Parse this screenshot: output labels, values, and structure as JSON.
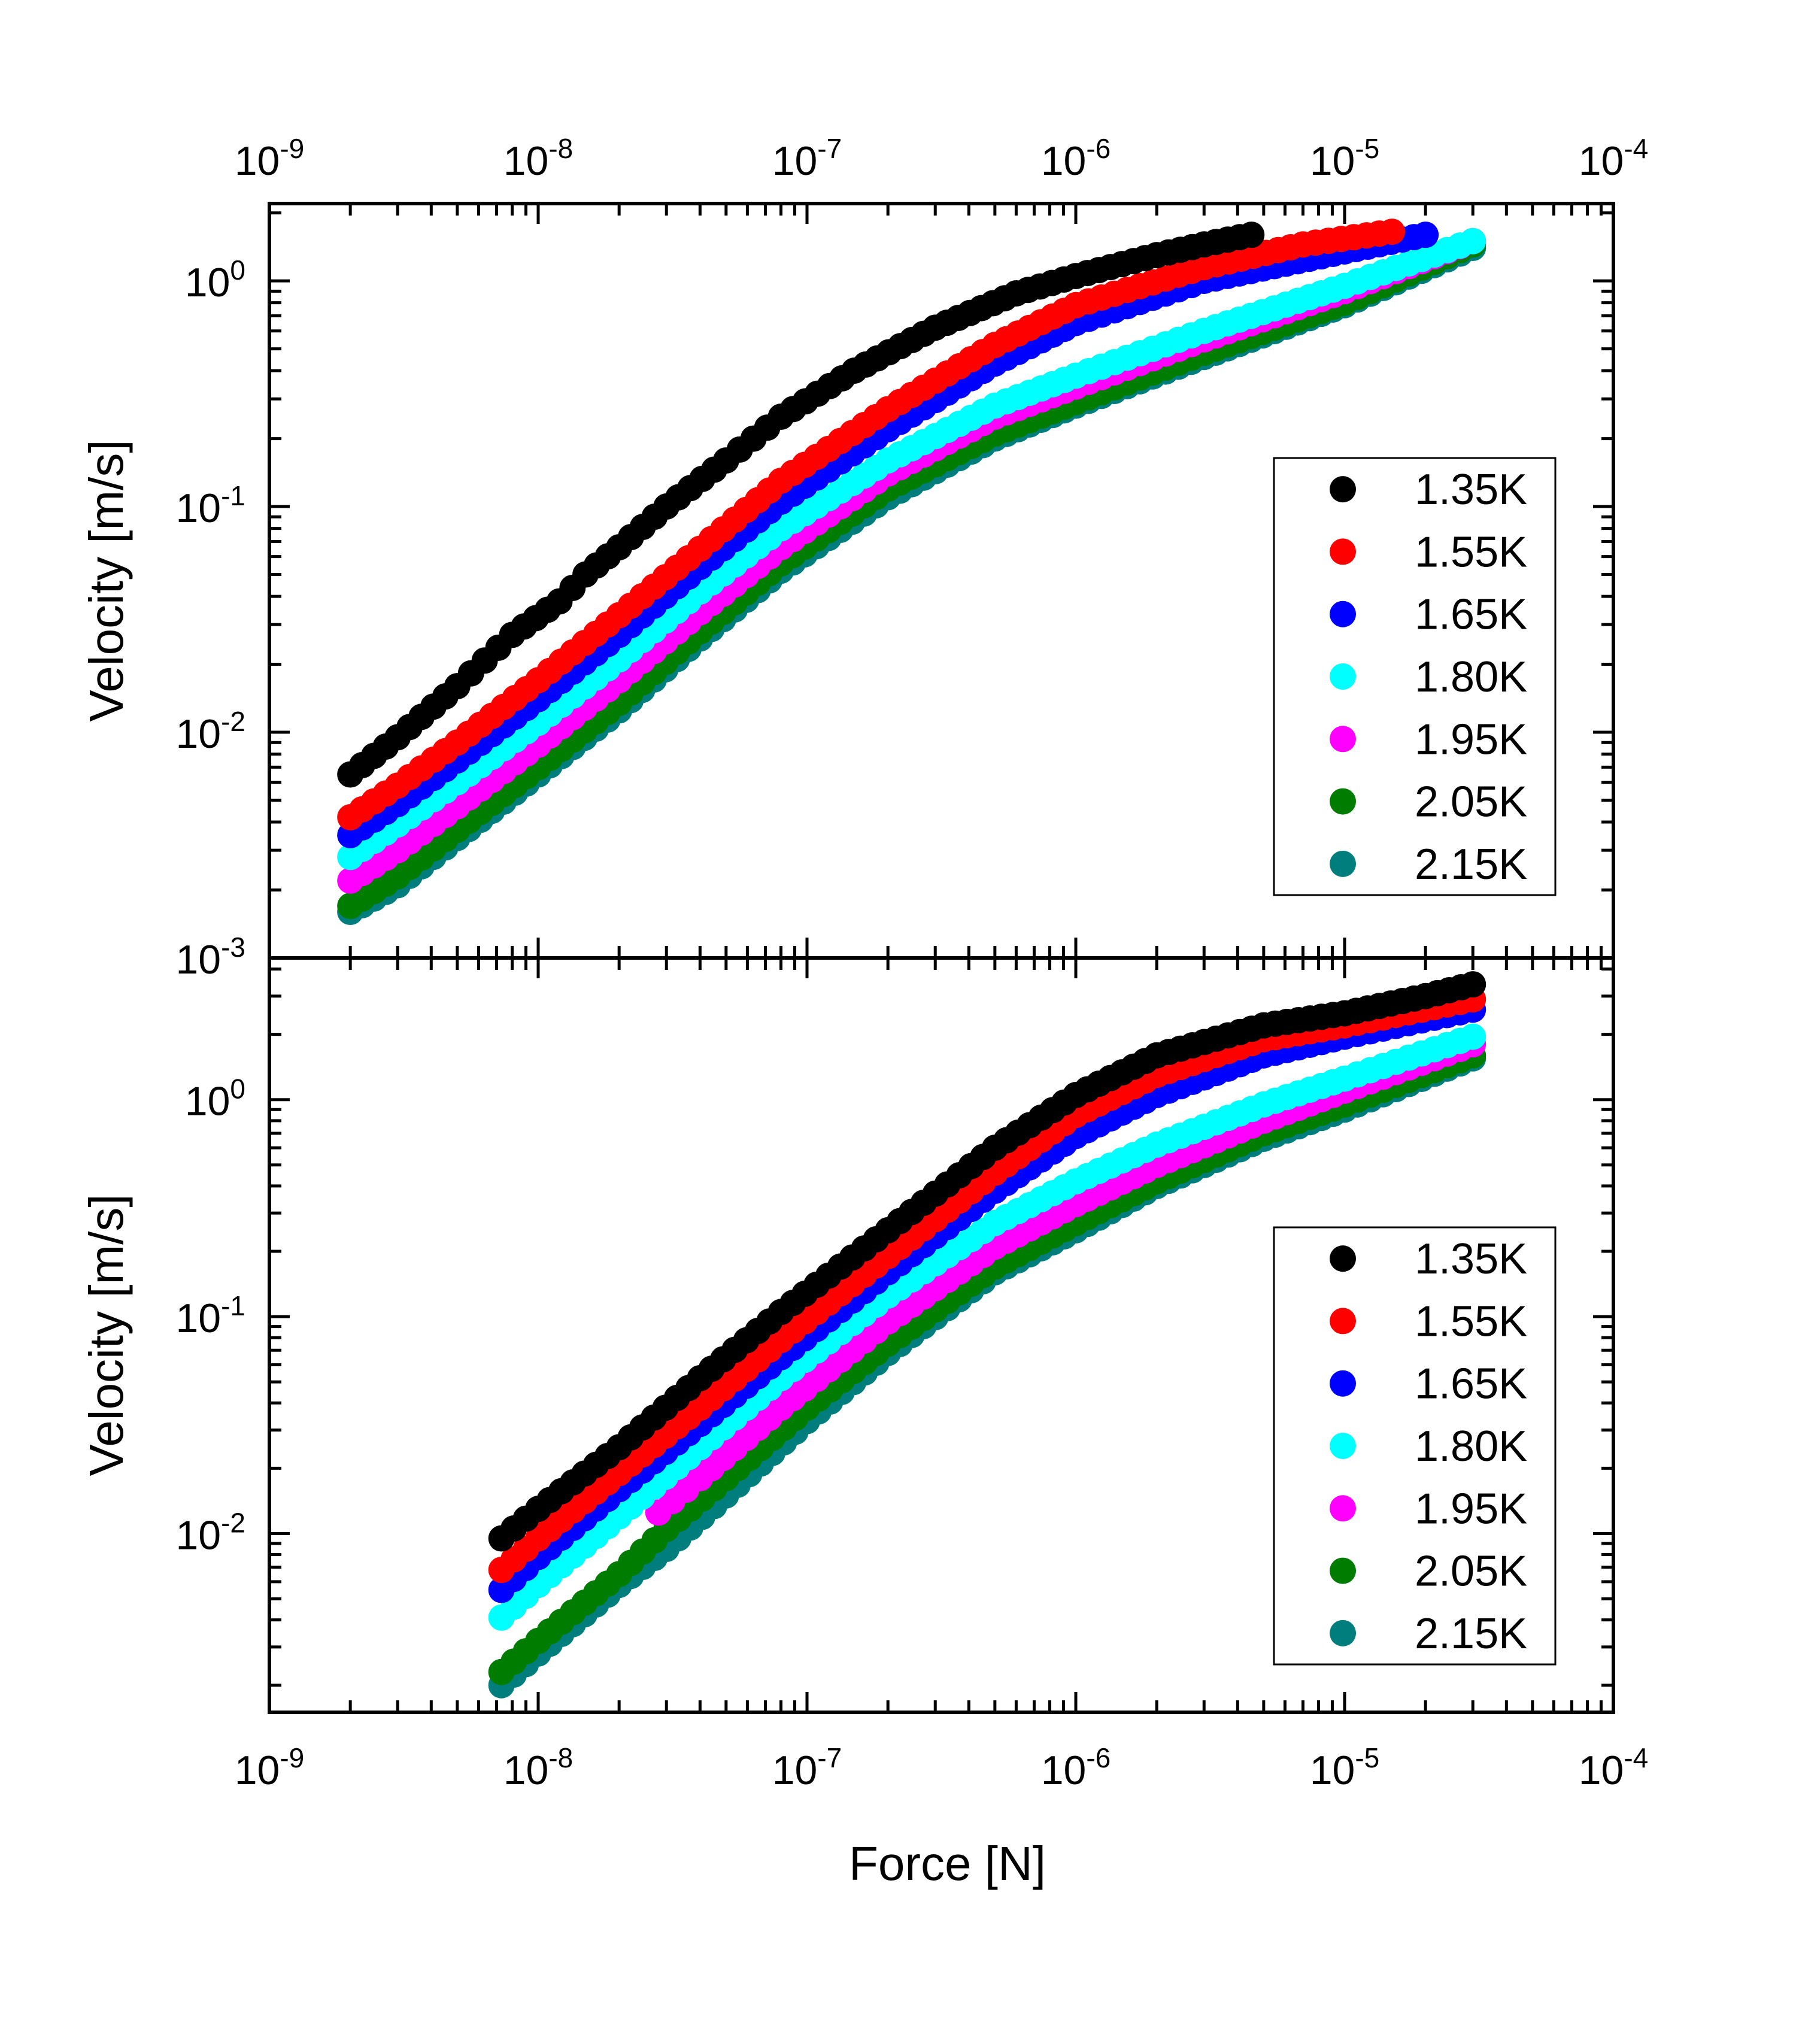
{
  "chart_data": [
    {
      "type": "scatter",
      "panel": "top",
      "xscale": "log",
      "yscale": "log",
      "xlim": [
        1e-09,
        0.0001
      ],
      "ylim": [
        0.001,
        2.2
      ],
      "xlabel": "",
      "ylabel": "Velocity [m/s]",
      "x_tick_labels": [
        {
          "value": 1e-09,
          "base": "10",
          "exp": "-9"
        },
        {
          "value": 1e-08,
          "base": "10",
          "exp": "-8"
        },
        {
          "value": 1e-07,
          "base": "10",
          "exp": "-7"
        },
        {
          "value": 1e-06,
          "base": "10",
          "exp": "-6"
        },
        {
          "value": 1e-05,
          "base": "10",
          "exp": "-5"
        },
        {
          "value": 0.0001,
          "base": "10",
          "exp": "-4"
        }
      ],
      "y_tick_labels": [
        {
          "value": 0.001,
          "base": "10",
          "exp": "-3"
        },
        {
          "value": 0.01,
          "base": "10",
          "exp": "-2"
        },
        {
          "value": 0.1,
          "base": "10",
          "exp": "-1"
        },
        {
          "value": 1,
          "base": "10",
          "exp": "0"
        }
      ],
      "legend_position": "right",
      "series": [
        {
          "name": "1.35K",
          "color": "#000000",
          "points": [
            [
              2e-09,
              0.0065
            ],
            [
              3e-09,
              0.0095
            ],
            [
              5e-09,
              0.016
            ],
            [
              8e-09,
              0.027
            ],
            [
              1.2e-08,
              0.038
            ],
            [
              1.5e-08,
              0.05
            ],
            [
              2e-08,
              0.066
            ],
            [
              3e-08,
              0.1
            ],
            [
              5e-08,
              0.16
            ],
            [
              8e-08,
              0.25
            ],
            [
              1.5e-07,
              0.4
            ],
            [
              3e-07,
              0.62
            ],
            [
              6e-07,
              0.88
            ],
            [
              1e-06,
              1.05
            ],
            [
              2e-06,
              1.3
            ],
            [
              3e-06,
              1.45
            ],
            [
              4.5e-06,
              1.6
            ]
          ]
        },
        {
          "name": "1.55K",
          "color": "#ff0000",
          "points": [
            [
              2e-09,
              0.0042
            ],
            [
              3e-09,
              0.0058
            ],
            [
              5e-09,
              0.009
            ],
            [
              1e-08,
              0.017
            ],
            [
              2e-08,
              0.033
            ],
            [
              4e-08,
              0.065
            ],
            [
              8e-08,
              0.13
            ],
            [
              2e-07,
              0.27
            ],
            [
              5e-07,
              0.52
            ],
            [
              1e-06,
              0.78
            ],
            [
              3e-06,
              1.15
            ],
            [
              7e-06,
              1.45
            ],
            [
              1.5e-05,
              1.65
            ]
          ]
        },
        {
          "name": "1.65K",
          "color": "#0000ff",
          "points": [
            [
              2e-09,
              0.0035
            ],
            [
              3e-09,
              0.0048
            ],
            [
              5e-09,
              0.0075
            ],
            [
              1e-08,
              0.014
            ],
            [
              2e-08,
              0.027
            ],
            [
              4e-08,
              0.054
            ],
            [
              8e-08,
              0.105
            ],
            [
              2e-07,
              0.22
            ],
            [
              5e-07,
              0.43
            ],
            [
              1e-06,
              0.65
            ],
            [
              3e-06,
              1.0
            ],
            [
              1e-05,
              1.35
            ],
            [
              2e-05,
              1.6
            ]
          ]
        },
        {
          "name": "1.80K",
          "color": "#00ffff",
          "points": [
            [
              2e-09,
              0.0028
            ],
            [
              3e-09,
              0.0039
            ],
            [
              5e-09,
              0.006
            ],
            [
              1e-08,
              0.011
            ],
            [
              2e-08,
              0.021
            ],
            [
              4e-08,
              0.042
            ],
            [
              8e-08,
              0.08
            ],
            [
              2e-07,
              0.16
            ],
            [
              5e-07,
              0.28
            ],
            [
              1e-06,
              0.38
            ],
            [
              3e-06,
              0.6
            ],
            [
              1e-05,
              0.95
            ],
            [
              3e-05,
              1.5
            ]
          ]
        },
        {
          "name": "1.95K",
          "color": "#ff00ff",
          "points": [
            [
              2e-09,
              0.0022
            ],
            [
              3e-09,
              0.003
            ],
            [
              5e-09,
              0.0047
            ],
            [
              1e-08,
              0.0088
            ],
            [
              2e-08,
              0.017
            ],
            [
              4e-08,
              0.034
            ],
            [
              8e-08,
              0.066
            ],
            [
              2e-07,
              0.14
            ],
            [
              5e-07,
              0.25
            ],
            [
              1e-06,
              0.34
            ],
            [
              3e-06,
              0.55
            ],
            [
              1e-05,
              0.9
            ],
            [
              3e-05,
              1.5
            ]
          ]
        },
        {
          "name": "2.05K",
          "color": "#007d00",
          "points": [
            [
              2e-09,
              0.0017
            ],
            [
              3e-09,
              0.0023
            ],
            [
              5e-09,
              0.0037
            ],
            [
              1e-08,
              0.007
            ],
            [
              2e-08,
              0.0135
            ],
            [
              4e-08,
              0.028
            ],
            [
              8e-08,
              0.056
            ],
            [
              2e-07,
              0.12
            ],
            [
              5e-07,
              0.21
            ],
            [
              1e-06,
              0.29
            ],
            [
              3e-06,
              0.48
            ],
            [
              1e-05,
              0.8
            ],
            [
              3e-05,
              1.45
            ]
          ]
        },
        {
          "name": "2.15K",
          "color": "#007d7d",
          "points": [
            [
              2e-09,
              0.0016
            ],
            [
              3e-09,
              0.0021
            ],
            [
              5e-09,
              0.0034
            ],
            [
              1e-08,
              0.0065
            ],
            [
              2e-08,
              0.0125
            ],
            [
              4e-08,
              0.026
            ],
            [
              8e-08,
              0.052
            ],
            [
              2e-07,
              0.11
            ],
            [
              5e-07,
              0.2
            ],
            [
              1e-06,
              0.28
            ],
            [
              3e-06,
              0.46
            ],
            [
              1e-05,
              0.78
            ],
            [
              3e-05,
              1.4
            ]
          ]
        }
      ]
    },
    {
      "type": "scatter",
      "panel": "bottom",
      "xscale": "log",
      "yscale": "log",
      "xlim": [
        1e-09,
        0.0001
      ],
      "ylim": [
        0.0015,
        4.5
      ],
      "xlabel": "Force [N]",
      "ylabel": "Velocity [m/s]",
      "x_tick_labels": [
        {
          "value": 1e-09,
          "base": "10",
          "exp": "-9"
        },
        {
          "value": 1e-08,
          "base": "10",
          "exp": "-8"
        },
        {
          "value": 1e-07,
          "base": "10",
          "exp": "-7"
        },
        {
          "value": 1e-06,
          "base": "10",
          "exp": "-6"
        },
        {
          "value": 1e-05,
          "base": "10",
          "exp": "-5"
        },
        {
          "value": 0.0001,
          "base": "10",
          "exp": "-4"
        }
      ],
      "y_tick_labels": [
        {
          "value": 0.01,
          "base": "10",
          "exp": "-2"
        },
        {
          "value": 0.1,
          "base": "10",
          "exp": "-1"
        },
        {
          "value": 1,
          "base": "10",
          "exp": "0"
        }
      ],
      "legend_position": "right",
      "series": [
        {
          "name": "1.35K",
          "color": "#000000",
          "points": [
            [
              7.3e-09,
              0.0095
            ],
            [
              1e-08,
              0.013
            ],
            [
              2e-08,
              0.025
            ],
            [
              4e-08,
              0.052
            ],
            [
              8e-08,
              0.105
            ],
            [
              2e-07,
              0.25
            ],
            [
              5e-07,
              0.6
            ],
            [
              1e-06,
              1.05
            ],
            [
              2e-06,
              1.6
            ],
            [
              5e-06,
              2.2
            ],
            [
              1e-05,
              2.5
            ],
            [
              2e-05,
              3.0
            ],
            [
              3e-05,
              3.4
            ]
          ]
        },
        {
          "name": "1.55K",
          "color": "#ff0000",
          "points": [
            [
              7.3e-09,
              0.0068
            ],
            [
              1e-08,
              0.0095
            ],
            [
              2e-08,
              0.019
            ],
            [
              4e-08,
              0.038
            ],
            [
              8e-08,
              0.078
            ],
            [
              2e-07,
              0.19
            ],
            [
              5e-07,
              0.46
            ],
            [
              1e-06,
              0.85
            ],
            [
              2e-06,
              1.3
            ],
            [
              5e-06,
              1.9
            ],
            [
              1e-05,
              2.2
            ],
            [
              3e-05,
              2.9
            ]
          ]
        },
        {
          "name": "1.65K",
          "color": "#0000ff",
          "points": [
            [
              7.3e-09,
              0.0055
            ],
            [
              1e-08,
              0.0078
            ],
            [
              2e-08,
              0.016
            ],
            [
              4e-08,
              0.032
            ],
            [
              8e-08,
              0.065
            ],
            [
              2e-07,
              0.16
            ],
            [
              5e-07,
              0.38
            ],
            [
              1e-06,
              0.68
            ],
            [
              2e-06,
              1.05
            ],
            [
              5e-06,
              1.6
            ],
            [
              1e-05,
              1.95
            ],
            [
              3e-05,
              2.6
            ]
          ]
        },
        {
          "name": "1.80K",
          "color": "#00ffff",
          "points": [
            [
              7.3e-09,
              0.0041
            ],
            [
              1e-08,
              0.0058
            ],
            [
              2e-08,
              0.012
            ],
            [
              4e-08,
              0.025
            ],
            [
              8e-08,
              0.052
            ],
            [
              2e-07,
              0.125
            ],
            [
              5e-07,
              0.27
            ],
            [
              1e-06,
              0.42
            ],
            [
              2e-06,
              0.62
            ],
            [
              5e-06,
              0.95
            ],
            [
              1e-05,
              1.25
            ],
            [
              3e-05,
              1.95
            ]
          ]
        },
        {
          "name": "1.95K",
          "color": "#ff00ff",
          "points": [
            [
              2.8e-08,
              0.0125
            ],
            [
              4e-08,
              0.018
            ],
            [
              8e-08,
              0.038
            ],
            [
              2e-07,
              0.095
            ],
            [
              5e-07,
              0.21
            ],
            [
              1e-06,
              0.33
            ],
            [
              2e-06,
              0.5
            ],
            [
              5e-06,
              0.8
            ],
            [
              1e-05,
              1.1
            ],
            [
              3e-05,
              1.8
            ]
          ]
        },
        {
          "name": "2.05K",
          "color": "#007d00",
          "points": [
            [
              7.3e-09,
              0.0023
            ],
            [
              1e-08,
              0.0032
            ],
            [
              2e-08,
              0.0065
            ],
            [
              3e-08,
              0.0105
            ],
            [
              5e-08,
              0.018
            ],
            [
              1e-07,
              0.038
            ],
            [
              2e-07,
              0.075
            ],
            [
              5e-07,
              0.17
            ],
            [
              1e-06,
              0.27
            ],
            [
              2e-06,
              0.42
            ],
            [
              5e-06,
              0.7
            ],
            [
              1e-05,
              0.95
            ],
            [
              3e-05,
              1.6
            ]
          ]
        },
        {
          "name": "2.15K",
          "color": "#007d7d",
          "points": [
            [
              7.3e-09,
              0.002
            ],
            [
              1e-08,
              0.0028
            ],
            [
              2e-08,
              0.0058
            ],
            [
              3e-08,
              0.0085
            ],
            [
              5e-08,
              0.015
            ],
            [
              1e-07,
              0.033
            ],
            [
              2e-07,
              0.068
            ],
            [
              5e-07,
              0.16
            ],
            [
              1e-06,
              0.25
            ],
            [
              2e-06,
              0.4
            ],
            [
              5e-06,
              0.66
            ],
            [
              1e-05,
              0.9
            ],
            [
              3e-05,
              1.55
            ]
          ]
        }
      ]
    }
  ]
}
